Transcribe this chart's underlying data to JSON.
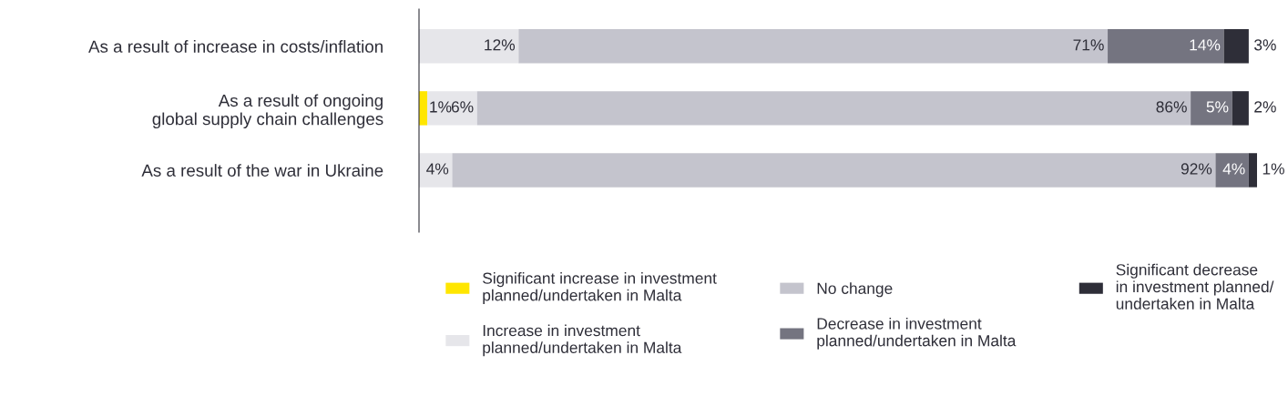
{
  "chart_data": {
    "type": "bar",
    "orientation": "horizontal",
    "stacked": true,
    "legend": "bottom",
    "grid": false,
    "categories": [
      "As a result of increase in costs/inflation",
      "As a result of ongoing\nglobal supply chain challenges",
      "As a result of the war in Ukraine"
    ],
    "series": [
      {
        "name": "Significant increase in investment\nplanned/undertaken in Malta",
        "color": "#ffe600",
        "values": [
          0,
          1,
          0
        ],
        "value_labels": [
          null,
          "1%",
          null
        ]
      },
      {
        "name": "Increase in investment\nplanned/undertaken in Malta",
        "color": "#e6e6ea",
        "values": [
          12,
          6,
          4
        ],
        "value_labels": [
          "12%",
          "6%",
          "4%"
        ]
      },
      {
        "name": "No change",
        "color": "#c4c4cd",
        "values": [
          71,
          86,
          92
        ],
        "value_labels": [
          "71%",
          "86%",
          "92%"
        ]
      },
      {
        "name": "Decrease in investment\nplanned/undertaken in Malta",
        "color": "#747480",
        "values": [
          14,
          5,
          4
        ],
        "value_labels": [
          "14%",
          "5%",
          "4%"
        ]
      },
      {
        "name": "Significant decrease\nin investment planned/\nundertaken in Malta",
        "color": "#2e2e38",
        "values": [
          3,
          2,
          1
        ],
        "value_labels": [
          "3%",
          "2%",
          "1%"
        ]
      }
    ]
  }
}
